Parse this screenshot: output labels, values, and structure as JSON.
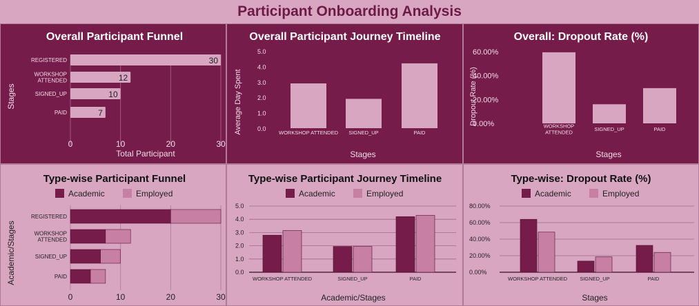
{
  "page_title": "Participant Onboarding Analysis",
  "colors": {
    "dark_bg": "#751c4a",
    "light_bg": "#d8a6c1",
    "light_bar": "#d8a6c1",
    "academic": "#751c4a",
    "employed": "#c77fa4",
    "title_text": "#6e1a47"
  },
  "chart_data": [
    {
      "id": "overall_funnel",
      "type": "bar",
      "orientation": "horizontal",
      "title": "Overall Participant Funnel",
      "xlabel": "Total Participant",
      "ylabel": "Stages",
      "categories": [
        "REGISTERED",
        "WORKSHOP\nATTENDED",
        "SIGNED_UP",
        "PAID"
      ],
      "values": [
        30,
        12,
        10,
        7
      ],
      "xlim": [
        0,
        30
      ],
      "xticks": [
        "0",
        "10",
        "20",
        "30"
      ],
      "data_labels": true
    },
    {
      "id": "overall_timeline",
      "type": "bar",
      "title": "Overall Participant Journey Timeline",
      "xlabel": "Stages",
      "ylabel": "Average Day Spent",
      "categories": [
        "WORKSHOP ATTENDED",
        "SIGNED_UP",
        "PAID"
      ],
      "values": [
        2.9,
        1.9,
        4.2
      ],
      "ylim": [
        0,
        5
      ],
      "yticks": [
        "0.0",
        "1.0",
        "2.0",
        "3.0",
        "4.0",
        "5.0"
      ]
    },
    {
      "id": "overall_dropout",
      "type": "bar",
      "title": "Overall: Dropout Rate (%)",
      "xlabel": "Stages",
      "ylabel": "Dropout Rate (%)",
      "categories": [
        "WORKSHOP\nATTENDED",
        "SIGNED_UP",
        "PAID"
      ],
      "values": [
        59.5,
        16.0,
        29.5
      ],
      "ylim": [
        0,
        60
      ],
      "yticks": [
        "0.00%",
        "20.00%",
        "40.00%",
        "60.00%"
      ]
    },
    {
      "id": "typewise_funnel",
      "type": "bar",
      "orientation": "horizontal",
      "stacked": true,
      "title": "Type-wise Participant Funnel",
      "ylabel": "Academic/Stages",
      "categories": [
        "REGISTERED",
        "WORKSHOP\nATTENDED",
        "SIGNED_UP",
        "PAID"
      ],
      "series": [
        {
          "name": "Academic",
          "values": [
            20,
            7,
            6,
            4
          ]
        },
        {
          "name": "Employed",
          "values": [
            10,
            5,
            4,
            3
          ]
        }
      ],
      "xlim": [
        0,
        30
      ],
      "xticks": [
        "0",
        "10",
        "20",
        "30"
      ],
      "legend": "top"
    },
    {
      "id": "typewise_timeline",
      "type": "bar",
      "title": "Type-wise Participant Journey Timeline",
      "xlabel": "Academic/Stages",
      "categories": [
        "WORKSHOP ATTENDED",
        "SIGNED_UP",
        "PAID"
      ],
      "series": [
        {
          "name": "Academic",
          "values": [
            2.8,
            1.95,
            4.2
          ]
        },
        {
          "name": "Employed",
          "values": [
            3.15,
            1.95,
            4.3
          ]
        }
      ],
      "ylim": [
        0,
        5
      ],
      "yticks": [
        "0.0",
        "1.0",
        "2.0",
        "3.0",
        "4.0",
        "5.0"
      ],
      "legend": "top"
    },
    {
      "id": "typewise_dropout",
      "type": "bar",
      "title": "Type-wise: Dropout Rate (%)",
      "xlabel": "Stages",
      "categories": [
        "WORKSHOP ATTENDED",
        "SIGNED_UP",
        "PAID"
      ],
      "series": [
        {
          "name": "Academic",
          "values": [
            64.0,
            13.5,
            32.5
          ]
        },
        {
          "name": "Employed",
          "values": [
            48.5,
            18.5,
            24.0
          ]
        }
      ],
      "ylim": [
        0,
        80
      ],
      "yticks": [
        "0.00%",
        "20.00%",
        "40.00%",
        "60.00%",
        "80.00%"
      ],
      "legend": "top"
    }
  ]
}
